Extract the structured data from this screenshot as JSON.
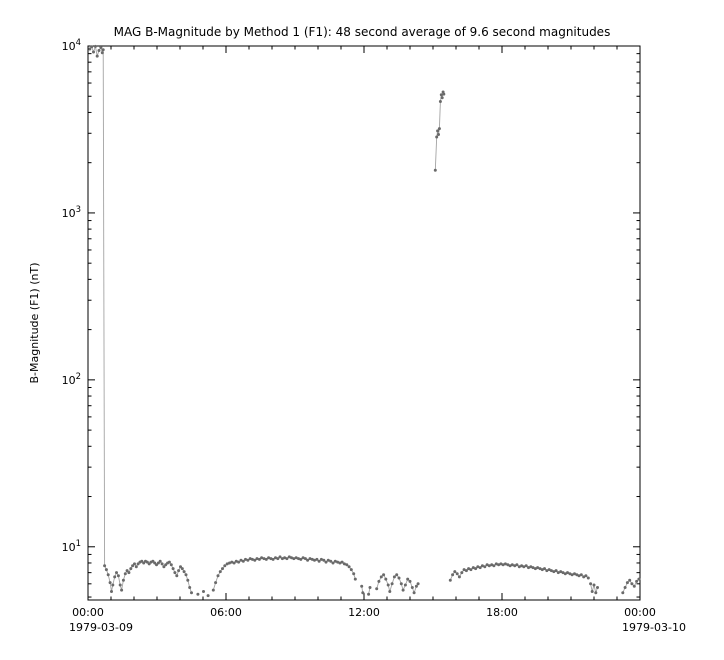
{
  "window": {
    "background": "#ffffff"
  },
  "chart_data": {
    "type": "line",
    "title": "MAG  B-Magnitude by Method 1 (F1): 48 second average of 9.6 second magnitudes",
    "xlabel": "",
    "ylabel": "B-Magnitude (F1) (nT)",
    "grid": false,
    "legend": "none",
    "x_axis": {
      "unit": "time-of-day",
      "range_hours": [
        0,
        24
      ],
      "major_ticks_hours": [
        0,
        6,
        12,
        18,
        24
      ],
      "tick_labels": [
        "00:00",
        "06:00",
        "12:00",
        "18:00",
        "00:00"
      ],
      "minor_tick_step_hours": 1,
      "start_label": "1979-03-09",
      "end_label": "1979-03-10"
    },
    "y_axis": {
      "scale": "log",
      "range": [
        4.8,
        10000
      ],
      "major_tick_exponents": [
        1,
        2,
        3,
        4
      ],
      "tick_base": "10"
    },
    "style": {
      "marker_color": "#6a6a6a",
      "line_color": "#a3a3a3",
      "axis_color": "#000000",
      "marker_radius": 1.5,
      "line_width": 0.9,
      "background": "#ffffff"
    },
    "series_name": "B-Magnitude (F1)",
    "segments": [
      {
        "name": "initial-high-field-and-morning-sheath",
        "points": [
          [
            0.08,
            9600
          ],
          [
            0.16,
            9900
          ],
          [
            0.24,
            9200
          ],
          [
            0.32,
            9950
          ],
          [
            0.4,
            8700
          ],
          [
            0.48,
            9400
          ],
          [
            0.56,
            9800
          ],
          [
            0.62,
            9100
          ],
          [
            0.66,
            9500
          ],
          [
            0.72,
            7.7
          ],
          [
            0.8,
            7.3
          ],
          [
            0.88,
            6.8
          ],
          [
            0.96,
            6.1
          ],
          [
            1.02,
            5.4
          ],
          [
            1.08,
            5.9
          ],
          [
            1.16,
            6.6
          ],
          [
            1.24,
            7.0
          ],
          [
            1.32,
            6.7
          ],
          [
            1.4,
            5.9
          ],
          [
            1.46,
            5.5
          ],
          [
            1.54,
            6.3
          ],
          [
            1.62,
            6.9
          ],
          [
            1.7,
            7.2
          ],
          [
            1.78,
            7.0
          ],
          [
            1.86,
            7.4
          ],
          [
            1.94,
            7.7
          ],
          [
            2.02,
            7.9
          ],
          [
            2.1,
            7.6
          ],
          [
            2.18,
            7.9
          ],
          [
            2.26,
            8.1
          ],
          [
            2.34,
            8.2
          ],
          [
            2.42,
            8.0
          ],
          [
            2.5,
            8.2
          ],
          [
            2.58,
            8.1
          ],
          [
            2.66,
            7.9
          ],
          [
            2.74,
            8.1
          ],
          [
            2.82,
            8.2
          ],
          [
            2.9,
            8.0
          ],
          [
            2.98,
            7.8
          ],
          [
            3.06,
            8.0
          ],
          [
            3.14,
            8.2
          ],
          [
            3.22,
            7.9
          ],
          [
            3.3,
            7.6
          ],
          [
            3.38,
            7.8
          ],
          [
            3.46,
            8.0
          ],
          [
            3.54,
            8.1
          ],
          [
            3.62,
            7.8
          ],
          [
            3.7,
            7.4
          ],
          [
            3.78,
            7.0
          ],
          [
            3.86,
            6.7
          ],
          [
            3.94,
            7.2
          ],
          [
            4.02,
            7.6
          ],
          [
            4.1,
            7.4
          ],
          [
            4.18,
            7.1
          ],
          [
            4.26,
            6.8
          ],
          [
            4.34,
            6.3
          ],
          [
            4.42,
            5.7
          ],
          [
            4.5,
            5.3
          ]
        ]
      },
      {
        "name": "gap-dot-1",
        "points": [
          [
            4.78,
            5.2
          ]
        ]
      },
      {
        "name": "gap-dot-2",
        "points": [
          [
            5.02,
            5.4
          ]
        ]
      },
      {
        "name": "gap-dot-3",
        "points": [
          [
            5.22,
            5.1
          ]
        ]
      },
      {
        "name": "midday-plateau",
        "points": [
          [
            5.45,
            5.5
          ],
          [
            5.55,
            6.1
          ],
          [
            5.65,
            6.7
          ],
          [
            5.75,
            7.1
          ],
          [
            5.85,
            7.4
          ],
          [
            5.95,
            7.7
          ],
          [
            6.05,
            7.9
          ],
          [
            6.15,
            8.0
          ],
          [
            6.25,
            8.1
          ],
          [
            6.35,
            8.0
          ],
          [
            6.45,
            8.2
          ],
          [
            6.55,
            8.1
          ],
          [
            6.65,
            8.3
          ],
          [
            6.75,
            8.2
          ],
          [
            6.85,
            8.4
          ],
          [
            6.95,
            8.3
          ],
          [
            7.05,
            8.5
          ],
          [
            7.15,
            8.4
          ],
          [
            7.25,
            8.3
          ],
          [
            7.35,
            8.5
          ],
          [
            7.45,
            8.4
          ],
          [
            7.55,
            8.6
          ],
          [
            7.65,
            8.5
          ],
          [
            7.75,
            8.4
          ],
          [
            7.85,
            8.6
          ],
          [
            7.95,
            8.5
          ],
          [
            8.05,
            8.4
          ],
          [
            8.15,
            8.6
          ],
          [
            8.25,
            8.5
          ],
          [
            8.35,
            8.7
          ],
          [
            8.45,
            8.5
          ],
          [
            8.55,
            8.6
          ],
          [
            8.65,
            8.5
          ],
          [
            8.75,
            8.7
          ],
          [
            8.85,
            8.6
          ],
          [
            8.95,
            8.5
          ],
          [
            9.05,
            8.6
          ],
          [
            9.15,
            8.5
          ],
          [
            9.25,
            8.4
          ],
          [
            9.35,
            8.6
          ],
          [
            9.45,
            8.5
          ],
          [
            9.55,
            8.3
          ],
          [
            9.65,
            8.5
          ],
          [
            9.75,
            8.4
          ],
          [
            9.85,
            8.3
          ],
          [
            9.95,
            8.4
          ],
          [
            10.05,
            8.2
          ],
          [
            10.15,
            8.4
          ],
          [
            10.25,
            8.3
          ],
          [
            10.35,
            8.1
          ],
          [
            10.45,
            8.3
          ],
          [
            10.55,
            8.2
          ],
          [
            10.65,
            8.0
          ],
          [
            10.75,
            8.2
          ],
          [
            10.85,
            8.1
          ],
          [
            10.95,
            8.0
          ],
          [
            11.05,
            8.1
          ],
          [
            11.15,
            7.9
          ],
          [
            11.25,
            7.8
          ],
          [
            11.35,
            7.6
          ],
          [
            11.45,
            7.3
          ],
          [
            11.55,
            6.9
          ],
          [
            11.62,
            6.4
          ]
        ]
      },
      {
        "name": "noon-dropout-1",
        "points": [
          [
            11.9,
            5.8
          ],
          [
            11.95,
            5.3
          ]
        ]
      },
      {
        "name": "noon-dropout-2",
        "points": [
          [
            12.2,
            5.2
          ],
          [
            12.26,
            5.7
          ]
        ]
      },
      {
        "name": "early-afternoon-bumps",
        "points": [
          [
            12.55,
            5.6
          ],
          [
            12.65,
            6.2
          ],
          [
            12.75,
            6.6
          ],
          [
            12.85,
            6.8
          ],
          [
            12.95,
            6.4
          ],
          [
            13.05,
            5.9
          ],
          [
            13.12,
            5.4
          ],
          [
            13.22,
            6.0
          ],
          [
            13.32,
            6.6
          ],
          [
            13.42,
            6.8
          ],
          [
            13.52,
            6.5
          ],
          [
            13.62,
            6.0
          ],
          [
            13.7,
            5.5
          ],
          [
            13.8,
            5.9
          ],
          [
            13.9,
            6.4
          ],
          [
            14.0,
            6.2
          ],
          [
            14.1,
            5.7
          ],
          [
            14.18,
            5.3
          ],
          [
            14.28,
            5.8
          ],
          [
            14.35,
            6.0
          ]
        ]
      },
      {
        "name": "high-field-spike-cluster",
        "points": [
          [
            15.1,
            1800
          ],
          [
            15.16,
            2850
          ],
          [
            15.2,
            3100
          ],
          [
            15.24,
            2950
          ],
          [
            15.28,
            3200
          ],
          [
            15.32,
            4650
          ],
          [
            15.36,
            5100
          ],
          [
            15.4,
            4900
          ],
          [
            15.44,
            5300
          ],
          [
            15.47,
            5150
          ]
        ]
      },
      {
        "name": "evening-plateau",
        "points": [
          [
            15.75,
            6.3
          ],
          [
            15.85,
            6.8
          ],
          [
            15.95,
            7.1
          ],
          [
            16.05,
            6.9
          ],
          [
            16.15,
            6.6
          ],
          [
            16.25,
            7.0
          ],
          [
            16.35,
            7.3
          ],
          [
            16.45,
            7.2
          ],
          [
            16.55,
            7.4
          ],
          [
            16.65,
            7.3
          ],
          [
            16.75,
            7.5
          ],
          [
            16.85,
            7.4
          ],
          [
            16.95,
            7.6
          ],
          [
            17.05,
            7.5
          ],
          [
            17.15,
            7.7
          ],
          [
            17.25,
            7.6
          ],
          [
            17.35,
            7.8
          ],
          [
            17.45,
            7.7
          ],
          [
            17.55,
            7.8
          ],
          [
            17.65,
            7.7
          ],
          [
            17.75,
            7.9
          ],
          [
            17.85,
            7.8
          ],
          [
            17.95,
            7.9
          ],
          [
            18.05,
            7.8
          ],
          [
            18.15,
            7.9
          ],
          [
            18.25,
            7.8
          ],
          [
            18.35,
            7.7
          ],
          [
            18.45,
            7.8
          ],
          [
            18.55,
            7.7
          ],
          [
            18.65,
            7.8
          ],
          [
            18.75,
            7.6
          ],
          [
            18.85,
            7.7
          ],
          [
            18.95,
            7.6
          ],
          [
            19.05,
            7.7
          ],
          [
            19.15,
            7.5
          ],
          [
            19.25,
            7.6
          ],
          [
            19.35,
            7.5
          ],
          [
            19.45,
            7.4
          ],
          [
            19.55,
            7.5
          ],
          [
            19.65,
            7.4
          ],
          [
            19.75,
            7.3
          ],
          [
            19.85,
            7.4
          ],
          [
            19.95,
            7.2
          ],
          [
            20.05,
            7.3
          ],
          [
            20.15,
            7.2
          ],
          [
            20.25,
            7.1
          ],
          [
            20.35,
            7.2
          ],
          [
            20.45,
            7.0
          ],
          [
            20.55,
            7.1
          ],
          [
            20.65,
            7.0
          ],
          [
            20.75,
            6.9
          ],
          [
            20.85,
            7.0
          ],
          [
            20.95,
            6.9
          ],
          [
            21.05,
            6.8
          ],
          [
            21.15,
            6.9
          ],
          [
            21.25,
            6.8
          ],
          [
            21.35,
            6.7
          ],
          [
            21.45,
            6.8
          ],
          [
            21.55,
            6.6
          ],
          [
            21.65,
            6.7
          ],
          [
            21.75,
            6.5
          ]
        ]
      },
      {
        "name": "late-evening-dips",
        "points": [
          [
            21.85,
            6.0
          ],
          [
            21.92,
            5.4
          ],
          [
            22.0,
            5.9
          ],
          [
            22.08,
            5.3
          ],
          [
            22.15,
            5.7
          ]
        ]
      },
      {
        "name": "end-of-day-segment",
        "points": [
          [
            23.25,
            5.3
          ],
          [
            23.35,
            5.7
          ],
          [
            23.45,
            6.1
          ],
          [
            23.55,
            6.3
          ],
          [
            23.65,
            6.0
          ],
          [
            23.75,
            5.8
          ],
          [
            23.85,
            6.2
          ],
          [
            23.95,
            6.4
          ]
        ]
      }
    ]
  }
}
